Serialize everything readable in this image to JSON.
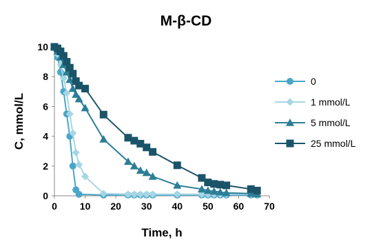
{
  "chart_data": {
    "type": "line",
    "title": "M-β-CD",
    "xlabel": "Time, h",
    "ylabel": "C, mmol/L",
    "xlim": [
      0,
      70
    ],
    "ylim": [
      0,
      10
    ],
    "x_ticks": [
      "0",
      "10",
      "20",
      "30",
      "40",
      "50",
      "60",
      "70"
    ],
    "y_ticks": [
      "0",
      "2",
      "4",
      "6",
      "8",
      "10"
    ],
    "grid": false,
    "legend_position": "right",
    "series": [
      {
        "name": "0",
        "color": "#4aa6c8",
        "marker": "circle",
        "points": [
          [
            0,
            10
          ],
          [
            1,
            9.3
          ],
          [
            2,
            8.3
          ],
          [
            3,
            7
          ],
          [
            4,
            5.5
          ],
          [
            5,
            4
          ],
          [
            6,
            2
          ],
          [
            7,
            0.4
          ],
          [
            8,
            0.1
          ],
          [
            16,
            0.05
          ],
          [
            24,
            0.05
          ],
          [
            26,
            0.05
          ],
          [
            28,
            0.05
          ],
          [
            30,
            0.05
          ],
          [
            32,
            0.05
          ],
          [
            40,
            0.05
          ],
          [
            48,
            0.05
          ],
          [
            50,
            0.05
          ],
          [
            52,
            0.05
          ],
          [
            54,
            0.05
          ],
          [
            56,
            0.05
          ],
          [
            64,
            0.05
          ],
          [
            66,
            0.05
          ]
        ]
      },
      {
        "name": "1 mmol/L",
        "color": "#a6d6e4",
        "marker": "diamond",
        "points": [
          [
            0,
            10
          ],
          [
            1,
            9.5
          ],
          [
            2,
            8.8
          ],
          [
            3,
            7.9
          ],
          [
            4,
            6.9
          ],
          [
            5,
            5.5
          ],
          [
            6,
            4.2
          ],
          [
            7,
            2.9
          ],
          [
            8,
            2.1
          ],
          [
            10,
            1.3
          ],
          [
            16,
            0.15
          ],
          [
            24,
            0.1
          ],
          [
            26,
            0.1
          ],
          [
            28,
            0.1
          ],
          [
            30,
            0.1
          ],
          [
            32,
            0.1
          ],
          [
            40,
            0.1
          ],
          [
            48,
            0.1
          ],
          [
            50,
            0.1
          ],
          [
            52,
            0.1
          ],
          [
            54,
            0.1
          ],
          [
            56,
            0.1
          ],
          [
            64,
            0.1
          ],
          [
            66,
            0.1
          ]
        ]
      },
      {
        "name": "5 mmol/L",
        "color": "#2b7e95",
        "marker": "triangle",
        "points": [
          [
            0,
            10
          ],
          [
            1,
            9.7
          ],
          [
            2,
            9.3
          ],
          [
            3,
            8.8
          ],
          [
            4,
            8.3
          ],
          [
            5,
            7.8
          ],
          [
            6,
            7.2
          ],
          [
            7,
            6.8
          ],
          [
            8,
            6.5
          ],
          [
            10,
            5.9
          ],
          [
            16,
            3.8
          ],
          [
            24,
            2.3
          ],
          [
            26,
            2
          ],
          [
            28,
            1.7
          ],
          [
            30,
            1.55
          ],
          [
            32,
            1.3
          ],
          [
            40,
            0.7
          ],
          [
            48,
            0.45
          ],
          [
            50,
            0.35
          ],
          [
            52,
            0.3
          ],
          [
            54,
            0.25
          ],
          [
            56,
            0.2
          ],
          [
            64,
            0.15
          ],
          [
            66,
            0.12
          ]
        ]
      },
      {
        "name": "25 mmol/L",
        "color": "#1b5468",
        "marker": "square",
        "points": [
          [
            0,
            10
          ],
          [
            1,
            9.9
          ],
          [
            2,
            9.7
          ],
          [
            3,
            9.4
          ],
          [
            4,
            9
          ],
          [
            5,
            8.6
          ],
          [
            6,
            8.2
          ],
          [
            7,
            7.7
          ],
          [
            8,
            7.4
          ],
          [
            10,
            7.2
          ],
          [
            16,
            5.45
          ],
          [
            24,
            3.9
          ],
          [
            26,
            3.7
          ],
          [
            28,
            3.5
          ],
          [
            30,
            3.25
          ],
          [
            32,
            2.95
          ],
          [
            40,
            2.05
          ],
          [
            48,
            1.2
          ],
          [
            50,
            0.9
          ],
          [
            52,
            0.8
          ],
          [
            54,
            0.75
          ],
          [
            56,
            0.7
          ],
          [
            64,
            0.45
          ],
          [
            66,
            0.35
          ]
        ]
      }
    ]
  }
}
